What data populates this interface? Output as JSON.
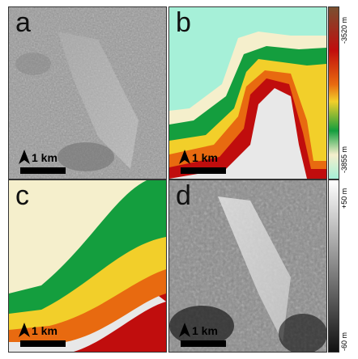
{
  "panels": {
    "a": {
      "letter": "a",
      "scale_label": "1 km",
      "north": "N"
    },
    "b": {
      "letter": "b",
      "scale_label": "1 km",
      "north": "N"
    },
    "c": {
      "letter": "c",
      "scale_label": "1 km",
      "north": "N"
    },
    "d": {
      "letter": "d",
      "scale_label": "1 km",
      "north": "N"
    }
  },
  "colorbars": {
    "elevation": {
      "top_label": "-3520 m",
      "bottom_label": "-3855 m"
    },
    "relative": {
      "top_label": "+50 m",
      "bottom_label": "-60 m"
    }
  },
  "colors": {
    "ramp_cyan": "#a6f0d8",
    "ramp_cream": "#f5efcc",
    "ramp_green": "#149e3e",
    "ramp_yellow": "#f2cf2a",
    "ramp_orange": "#e86a10",
    "ramp_red": "#c00d0d",
    "ramp_brown": "#7a5030"
  }
}
